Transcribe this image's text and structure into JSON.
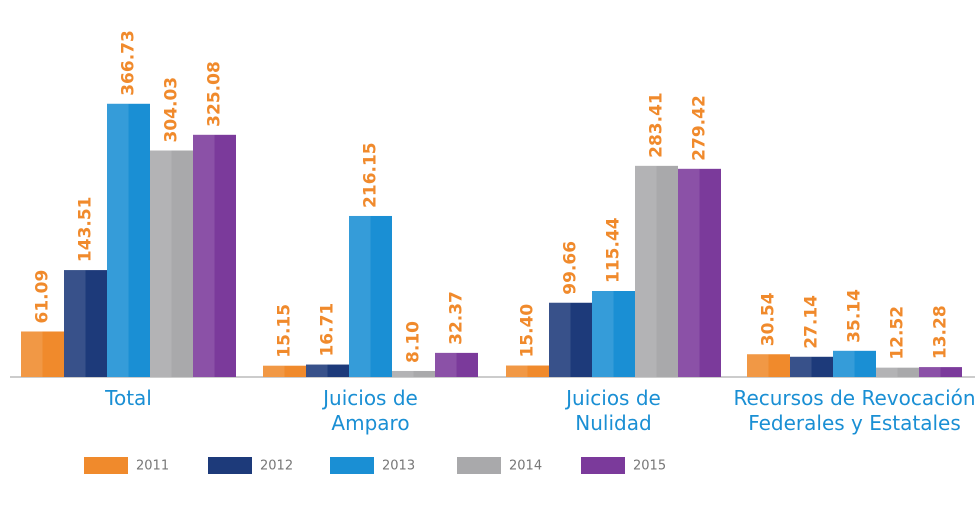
{
  "chart_data": {
    "type": "bar",
    "categories": [
      "Total",
      "Juicios de Amparo",
      "Juicios de Nulidad",
      "Recursos de Revocación Federales y Estatales"
    ],
    "series": [
      {
        "name": "2011",
        "color": "#f08a2c",
        "values": [
          61.09,
          15.15,
          15.4,
          30.54
        ],
        "value_labels": [
          "61.09",
          "15.15",
          "15.40",
          "30.54"
        ]
      },
      {
        "name": "2012",
        "color": "#1d3a7a",
        "values": [
          143.51,
          16.71,
          99.66,
          27.14
        ],
        "value_labels": [
          "143.51",
          "16.71",
          "99.66",
          "27.14"
        ]
      },
      {
        "name": "2013",
        "color": "#1a8fd4",
        "values": [
          366.73,
          216.15,
          115.44,
          35.14
        ],
        "value_labels": [
          "366.73",
          "216.15",
          "115.44",
          "35.14"
        ]
      },
      {
        "name": "2014",
        "color": "#a9a9ab",
        "values": [
          304.03,
          8.1,
          283.41,
          12.52
        ],
        "value_labels": [
          "304.03",
          "8.10",
          "283.41",
          "12.52"
        ]
      },
      {
        "name": "2015",
        "color": "#7b3a9b",
        "values": [
          325.08,
          32.37,
          279.42,
          13.28
        ],
        "value_labels": [
          "325.08",
          "32.37",
          "279.42",
          "13.28"
        ]
      }
    ]
  }
}
